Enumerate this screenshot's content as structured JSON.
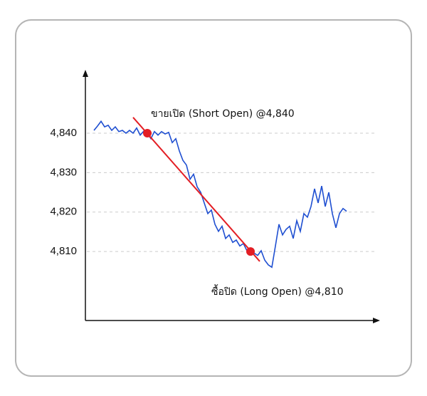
{
  "chart_data": {
    "type": "line",
    "values": [
      4840.7,
      4841.8,
      4843,
      4841.6,
      4842,
      4840.7,
      4841.6,
      4840.4,
      4840.7,
      4840,
      4840.7,
      4840,
      4841.3,
      4839.5,
      4840.5,
      4840,
      4838.6,
      4840.4,
      4839.5,
      4840.4,
      4839.8,
      4840.2,
      4837.6,
      4838.6,
      4835.5,
      4833.1,
      4831.9,
      4828.3,
      4829.6,
      4826.4,
      4825,
      4822.3,
      4819.6,
      4820.5,
      4816.9,
      4815.1,
      4816.4,
      4813.3,
      4814.2,
      4812.3,
      4812.9,
      4811.4,
      4812,
      4810.2,
      4810.5,
      4809.6,
      4809,
      4810.2,
      4807.8,
      4806.6,
      4806,
      4811.4,
      4816.9,
      4814.2,
      4815.6,
      4816.4,
      4813.3,
      4817.8,
      4815.1,
      4819.6,
      4818.7,
      4821.4,
      4825.9,
      4822.3,
      4826.6,
      4821.4,
      4825,
      4819.6,
      4816,
      4819.6,
      4820.9,
      4820.2
    ],
    "color": "#1f4fd1",
    "ylim": [
      4792.5,
      4855.7
    ],
    "yticks": [
      {
        "value": 4840,
        "label": "4,840"
      },
      {
        "value": 4830,
        "label": "4,830"
      },
      {
        "value": 4820,
        "label": "4,820"
      },
      {
        "value": 4810,
        "label": "4,810"
      }
    ],
    "grid": true,
    "trend_line": {
      "x": [
        11,
        46.6
      ],
      "values": [
        4844,
        4807.5
      ],
      "color": "#e31e24"
    },
    "annotations": [
      {
        "text": "ขายเปิด (Short Open) @4,840",
        "x": 15,
        "value": 4840
      },
      {
        "text": "ซื้อปิด (Long Open) @4,810",
        "x": 44,
        "value": 4810
      }
    ]
  }
}
